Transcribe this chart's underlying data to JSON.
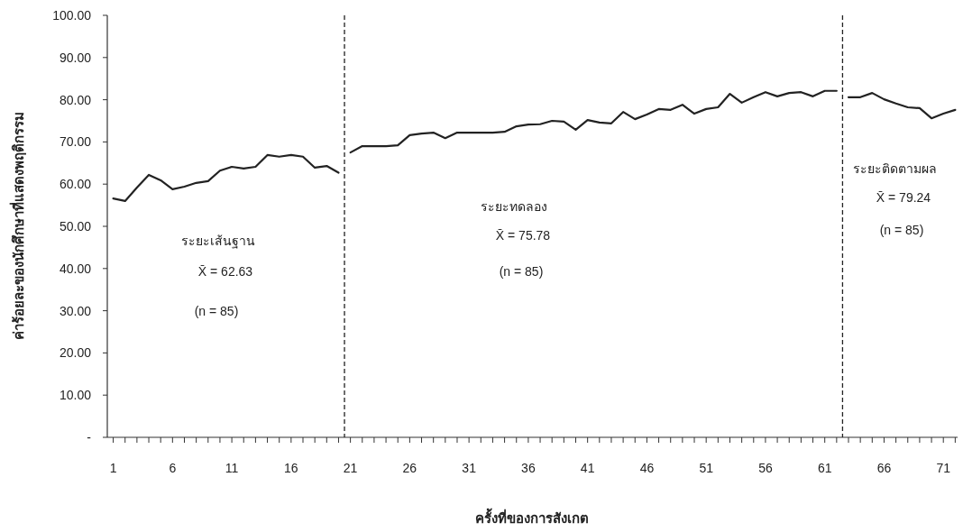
{
  "chart_data": {
    "type": "line",
    "xlabel": "ครั้งที่ของการสังเกต",
    "ylabel": "ค่าร้อยละของนักศึกษาที่แสดงพฤติกรรม",
    "series": [
      {
        "color": "#222222",
        "x": [
          1,
          2,
          3,
          4,
          5,
          6,
          7,
          8,
          9,
          10,
          11,
          12,
          13,
          14,
          15,
          16,
          17,
          18,
          19,
          20
        ],
        "values": [
          56.6,
          56.0,
          59.2,
          62.2,
          60.9,
          58.8,
          59.4,
          60.3,
          60.7,
          63.2,
          64.1,
          63.7,
          64.1,
          66.9,
          66.5,
          66.9,
          66.5,
          63.9,
          64.3,
          62.7
        ]
      },
      {
        "color": "#222222",
        "x": [
          21,
          22,
          23,
          24,
          25,
          26,
          27,
          28,
          29,
          30,
          31,
          32,
          33,
          34,
          35,
          36,
          37,
          38,
          39,
          40,
          41,
          42,
          43,
          44,
          45,
          46,
          47,
          48,
          49,
          50,
          51,
          52,
          53,
          54,
          55,
          56,
          57,
          58,
          59,
          60,
          61,
          62
        ],
        "values": [
          67.5,
          69.0,
          69.0,
          69.0,
          69.2,
          71.6,
          72.0,
          72.2,
          70.9,
          72.2,
          72.2,
          72.2,
          72.2,
          72.4,
          73.7,
          74.1,
          74.2,
          75.0,
          74.8,
          72.9,
          75.2,
          74.6,
          74.4,
          77.1,
          75.4,
          76.5,
          77.8,
          77.6,
          78.8,
          76.7,
          77.8,
          78.2,
          81.4,
          79.3,
          80.6,
          81.8,
          80.8,
          81.6,
          81.8,
          80.8,
          82.1,
          82.1
        ]
      },
      {
        "color": "#222222",
        "x": [
          63,
          64,
          65,
          66,
          67,
          68,
          69,
          70,
          71,
          72
        ],
        "values": [
          80.6,
          80.6,
          81.6,
          80.1,
          79.1,
          78.2,
          78.0,
          75.6,
          76.7,
          77.6
        ]
      }
    ],
    "xlim": [
      0.5,
      72.2
    ],
    "xticks": [
      1,
      {
        "value": 2,
        "label": null
      },
      {
        "value": 3,
        "label": null
      },
      {
        "value": 4,
        "label": null
      },
      {
        "value": 5,
        "label": null
      },
      6,
      {
        "value": 7,
        "label": null
      },
      {
        "value": 8,
        "label": null
      },
      {
        "value": 9,
        "label": null
      },
      {
        "value": 10,
        "label": null
      },
      11,
      {
        "value": 12,
        "label": null
      },
      {
        "value": 13,
        "label": null
      },
      {
        "value": 14,
        "label": null
      },
      {
        "value": 15,
        "label": null
      },
      16,
      {
        "value": 17,
        "label": null
      },
      {
        "value": 18,
        "label": null
      },
      {
        "value": 19,
        "label": null
      },
      {
        "value": 20,
        "label": null
      },
      21,
      {
        "value": 22,
        "label": null
      },
      {
        "value": 23,
        "label": null
      },
      {
        "value": 24,
        "label": null
      },
      {
        "value": 25,
        "label": null
      },
      26,
      {
        "value": 27,
        "label": null
      },
      {
        "value": 28,
        "label": null
      },
      {
        "value": 29,
        "label": null
      },
      {
        "value": 30,
        "label": null
      },
      31,
      {
        "value": 32,
        "label": null
      },
      {
        "value": 33,
        "label": null
      },
      {
        "value": 34,
        "label": null
      },
      {
        "value": 35,
        "label": null
      },
      36,
      {
        "value": 37,
        "label": null
      },
      {
        "value": 38,
        "label": null
      },
      {
        "value": 39,
        "label": null
      },
      {
        "value": 40,
        "label": null
      },
      41,
      {
        "value": 42,
        "label": null
      },
      {
        "value": 43,
        "label": null
      },
      {
        "value": 44,
        "label": null
      },
      {
        "value": 45,
        "label": null
      },
      46,
      {
        "value": 47,
        "label": null
      },
      {
        "value": 48,
        "label": null
      },
      {
        "value": 49,
        "label": null
      },
      {
        "value": 50,
        "label": null
      },
      51,
      {
        "value": 52,
        "label": null
      },
      {
        "value": 53,
        "label": null
      },
      {
        "value": 54,
        "label": null
      },
      {
        "value": 55,
        "label": null
      },
      56,
      {
        "value": 57,
        "label": null
      },
      {
        "value": 58,
        "label": null
      },
      {
        "value": 59,
        "label": null
      },
      {
        "value": 60,
        "label": null
      },
      61,
      {
        "value": 62,
        "label": null
      },
      {
        "value": 63,
        "label": null
      },
      {
        "value": 64,
        "label": null
      },
      {
        "value": 65,
        "label": null
      },
      66,
      {
        "value": 67,
        "label": null
      },
      {
        "value": 68,
        "label": null
      },
      {
        "value": 69,
        "label": null
      },
      {
        "value": 70,
        "label": null
      },
      71,
      {
        "value": 72,
        "label": null
      }
    ],
    "ylim": [
      0,
      100
    ],
    "yticks": [
      {
        "value": 0,
        "label": "-"
      },
      {
        "value": 10,
        "label": "10.00"
      },
      {
        "value": 20,
        "label": "20.00"
      },
      {
        "value": 30,
        "label": "30.00"
      },
      {
        "value": 40,
        "label": "40.00"
      },
      {
        "value": 50,
        "label": "50.00"
      },
      {
        "value": 60,
        "label": "60.00"
      },
      {
        "value": 70,
        "label": "70.00"
      },
      {
        "value": 80,
        "label": "80.00"
      },
      {
        "value": 90,
        "label": "90.00"
      },
      {
        "value": 100,
        "label": "100.00"
      }
    ],
    "ref_lines": [
      {
        "axis": "x",
        "value": 20.5,
        "color": "#222222",
        "line_style": "dashed"
      },
      {
        "axis": "x",
        "value": 62.5,
        "color": "#222222",
        "line_style": "dashed"
      }
    ],
    "annotations": [
      "ระยะเส้นฐาน",
      "X̄ = 62.63",
      "(n = 85)",
      "ระยะทดลอง",
      "X̄ = 75.78",
      "(n = 85)",
      "ระยะติดตามผล",
      "X̄ = 79.24",
      "(n = 85)"
    ],
    "grid": false,
    "marker": "none",
    "line_style": "solid"
  }
}
